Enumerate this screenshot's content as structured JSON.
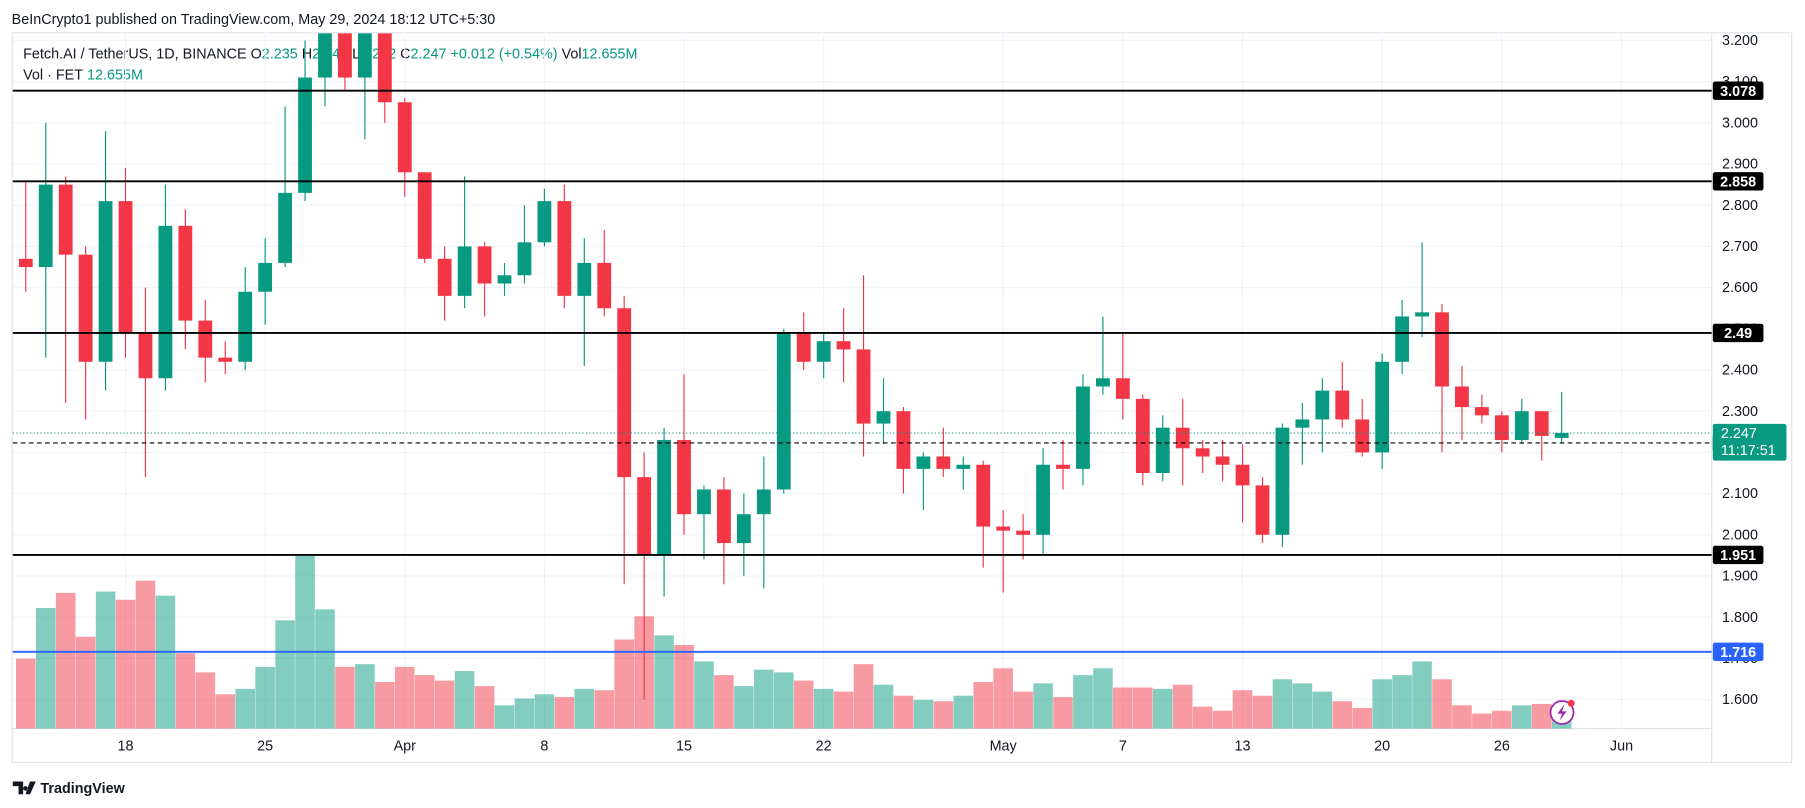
{
  "header": {
    "publisher": "BeInCrypto1 published on TradingView.com, May 29, 2024 18:12 UTC+5:30",
    "symbol": "Fetch.AI / TetherUS, 1D, BINANCE",
    "o": "O",
    "h": "H",
    "l": "L",
    "c": "C",
    "change": "+0.012 (+0.54%)",
    "vol": "Vol",
    "vol_value": "12.655M",
    "vol_pane": "Vol · FET",
    "footer": "TradingView"
  },
  "chart_data": {
    "type": "candlestick",
    "categories": [
      "Mar 13",
      "Mar 14",
      "Mar 15",
      "Mar 16",
      "Mar 17",
      "Mar 18",
      "Mar 19",
      "Mar 20",
      "Mar 21",
      "Mar 22",
      "Mar 23",
      "Mar 24",
      "Mar 25",
      "Mar 26",
      "Mar 27",
      "Mar 28",
      "Mar 29",
      "Mar 30",
      "Mar 31",
      "Apr 1",
      "Apr 2",
      "Apr 3",
      "Apr 4",
      "Apr 5",
      "Apr 6",
      "Apr 7",
      "Apr 8",
      "Apr 9",
      "Apr 10",
      "Apr 11",
      "Apr 12",
      "Apr 13",
      "Apr 14",
      "Apr 15",
      "Apr 16",
      "Apr 17",
      "Apr 18",
      "Apr 19",
      "Apr 20",
      "Apr 21",
      "Apr 22",
      "Apr 23",
      "Apr 24",
      "Apr 25",
      "Apr 26",
      "Apr 27",
      "Apr 28",
      "Apr 29",
      "Apr 30",
      "May 1",
      "May 2",
      "May 3",
      "May 4",
      "May 5",
      "May 6",
      "May 7",
      "May 8",
      "May 9",
      "May 10",
      "May 11",
      "May 12",
      "May 13",
      "May 14",
      "May 15",
      "May 16",
      "May 17",
      "May 18",
      "May 19",
      "May 20",
      "May 21",
      "May 22",
      "May 23",
      "May 24",
      "May 25",
      "May 26",
      "May 27",
      "May 28",
      "May 29"
    ],
    "open": [
      2.67,
      2.65,
      2.85,
      2.68,
      2.42,
      2.81,
      2.49,
      2.38,
      2.75,
      2.52,
      2.43,
      2.42,
      2.59,
      2.66,
      2.83,
      3.11,
      3.22,
      3.11,
      3.22,
      3.05,
      2.88,
      2.67,
      2.58,
      2.7,
      2.61,
      2.63,
      2.71,
      2.81,
      2.58,
      2.66,
      2.55,
      2.14,
      1.95,
      2.23,
      2.05,
      2.11,
      1.98,
      2.05,
      2.11,
      2.49,
      2.42,
      2.47,
      2.45,
      2.27,
      2.3,
      2.16,
      2.19,
      2.16,
      2.17,
      2.02,
      2.01,
      2.0,
      2.17,
      2.16,
      2.36,
      2.38,
      2.33,
      2.15,
      2.26,
      2.21,
      2.19,
      2.17,
      2.12,
      2.0,
      2.26,
      2.28,
      2.35,
      2.28,
      2.2,
      2.42,
      2.53,
      2.54,
      2.36,
      2.31,
      2.29,
      2.23,
      2.3,
      2.235
    ],
    "high": [
      2.86,
      3.0,
      2.87,
      2.7,
      2.98,
      2.89,
      2.6,
      2.85,
      2.79,
      2.57,
      2.47,
      2.65,
      2.72,
      3.04,
      3.2,
      3.3,
      3.28,
      3.28,
      3.28,
      3.06,
      2.88,
      2.7,
      2.87,
      2.71,
      2.66,
      2.8,
      2.84,
      2.85,
      2.72,
      2.74,
      2.58,
      2.2,
      2.26,
      2.39,
      2.12,
      2.14,
      2.1,
      2.19,
      2.5,
      2.54,
      2.49,
      2.55,
      2.63,
      2.38,
      2.31,
      2.2,
      2.26,
      2.19,
      2.18,
      2.06,
      2.05,
      2.21,
      2.23,
      2.39,
      2.53,
      2.49,
      2.34,
      2.29,
      2.33,
      2.23,
      2.23,
      2.22,
      2.14,
      2.27,
      2.32,
      2.38,
      2.42,
      2.33,
      2.44,
      2.57,
      2.71,
      2.56,
      2.41,
      2.34,
      2.3,
      2.33,
      2.3,
      2.347
    ],
    "low": [
      2.59,
      2.43,
      2.32,
      2.28,
      2.35,
      2.43,
      2.14,
      2.35,
      2.45,
      2.37,
      2.39,
      2.4,
      2.51,
      2.65,
      2.81,
      3.04,
      3.08,
      2.96,
      3.0,
      2.82,
      2.66,
      2.52,
      2.55,
      2.53,
      2.58,
      2.61,
      2.7,
      2.55,
      2.41,
      2.53,
      1.88,
      1.6,
      1.85,
      2.0,
      1.94,
      1.88,
      1.9,
      1.87,
      2.1,
      2.4,
      2.38,
      2.37,
      2.19,
      2.22,
      2.1,
      2.06,
      2.14,
      2.11,
      1.92,
      1.86,
      1.94,
      1.95,
      2.11,
      2.12,
      2.34,
      2.28,
      2.12,
      2.13,
      2.12,
      2.15,
      2.13,
      2.03,
      1.98,
      1.97,
      2.17,
      2.2,
      2.26,
      2.19,
      2.16,
      2.39,
      2.48,
      2.2,
      2.23,
      2.27,
      2.2,
      2.22,
      2.18,
      2.222
    ],
    "close": [
      2.65,
      2.85,
      2.68,
      2.42,
      2.81,
      2.49,
      2.38,
      2.75,
      2.52,
      2.43,
      2.42,
      2.59,
      2.66,
      2.83,
      3.11,
      3.22,
      3.11,
      3.22,
      3.05,
      2.88,
      2.67,
      2.58,
      2.7,
      2.61,
      2.63,
      2.71,
      2.81,
      2.58,
      2.66,
      2.55,
      2.14,
      1.95,
      2.23,
      2.05,
      2.11,
      1.98,
      2.05,
      2.11,
      2.49,
      2.42,
      2.47,
      2.45,
      2.27,
      2.3,
      2.16,
      2.19,
      2.16,
      2.17,
      2.02,
      2.01,
      2.0,
      2.17,
      2.16,
      2.36,
      2.38,
      2.33,
      2.15,
      2.26,
      2.21,
      2.19,
      2.17,
      2.12,
      2.0,
      2.26,
      2.28,
      2.35,
      2.28,
      2.2,
      2.42,
      2.53,
      2.54,
      2.36,
      2.31,
      2.29,
      2.23,
      2.3,
      2.24,
      2.247
    ],
    "volume": [
      51,
      88,
      99,
      67,
      100,
      94,
      108,
      97,
      55,
      41,
      25,
      29,
      45,
      79,
      126,
      87,
      45,
      47,
      34,
      45,
      39,
      35,
      42,
      31,
      17,
      22,
      25,
      23,
      29,
      28,
      65,
      82,
      68,
      61,
      49,
      39,
      31,
      43,
      41,
      35,
      29,
      27,
      47,
      32,
      24,
      21,
      20,
      24,
      34,
      44,
      27,
      33,
      23,
      39,
      44,
      30,
      30,
      29,
      32,
      16,
      13,
      28,
      24,
      36,
      33,
      27,
      20,
      15,
      36,
      39,
      49,
      36,
      17,
      11,
      13,
      17,
      18,
      12.655
    ],
    "up_color": "#089981",
    "down_color": "#f23645",
    "ylim": [
      1.51,
      3.22
    ],
    "yticks": [
      {
        "value": 3.2,
        "label": "3.200"
      },
      {
        "value": 3.1,
        "label": "3.100"
      },
      {
        "value": 3.0,
        "label": "3.000"
      },
      {
        "value": 2.9,
        "label": "2.900"
      },
      {
        "value": 2.8,
        "label": "2.800"
      },
      {
        "value": 2.7,
        "label": "2.700"
      },
      {
        "value": 2.6,
        "label": "2.600"
      },
      {
        "value": 2.5,
        "label": "2.500"
      },
      {
        "value": 2.4,
        "label": "2.400"
      },
      {
        "value": 2.3,
        "label": "2.300"
      },
      {
        "value": 2.2,
        "label": "2.200"
      },
      {
        "value": 2.1,
        "label": "2.100"
      },
      {
        "value": 2.0,
        "label": "2.000"
      },
      {
        "value": 1.9,
        "label": "1.900"
      },
      {
        "value": 1.8,
        "label": "1.800"
      },
      {
        "value": 1.7,
        "label": "1.700"
      },
      {
        "value": 1.6,
        "label": "1.600"
      }
    ],
    "xticks": [
      {
        "value": 5,
        "label": "18"
      },
      {
        "value": 12,
        "label": "25"
      },
      {
        "value": 19,
        "label": "Apr"
      },
      {
        "value": 26,
        "label": "8"
      },
      {
        "value": 33,
        "label": "15"
      },
      {
        "value": 40,
        "label": "22"
      },
      {
        "value": 49,
        "label": "May"
      },
      {
        "value": 55,
        "label": "7"
      },
      {
        "value": 61,
        "label": "13"
      },
      {
        "value": 68,
        "label": "20"
      },
      {
        "value": 74,
        "label": "26"
      },
      {
        "value": 80,
        "label": "Jun"
      }
    ],
    "grid": true,
    "levels": [
      {
        "value": 3.078,
        "color": "#000000"
      },
      {
        "value": 2.858,
        "color": "#000000"
      },
      {
        "value": 2.49,
        "color": "#000000"
      },
      {
        "value": 2.223,
        "color": "#000000",
        "style": "dashed"
      },
      {
        "value": 1.951,
        "color": "#000000"
      },
      {
        "value": 1.716,
        "color": "#2962ff"
      }
    ],
    "countdown": "11:17:51"
  }
}
